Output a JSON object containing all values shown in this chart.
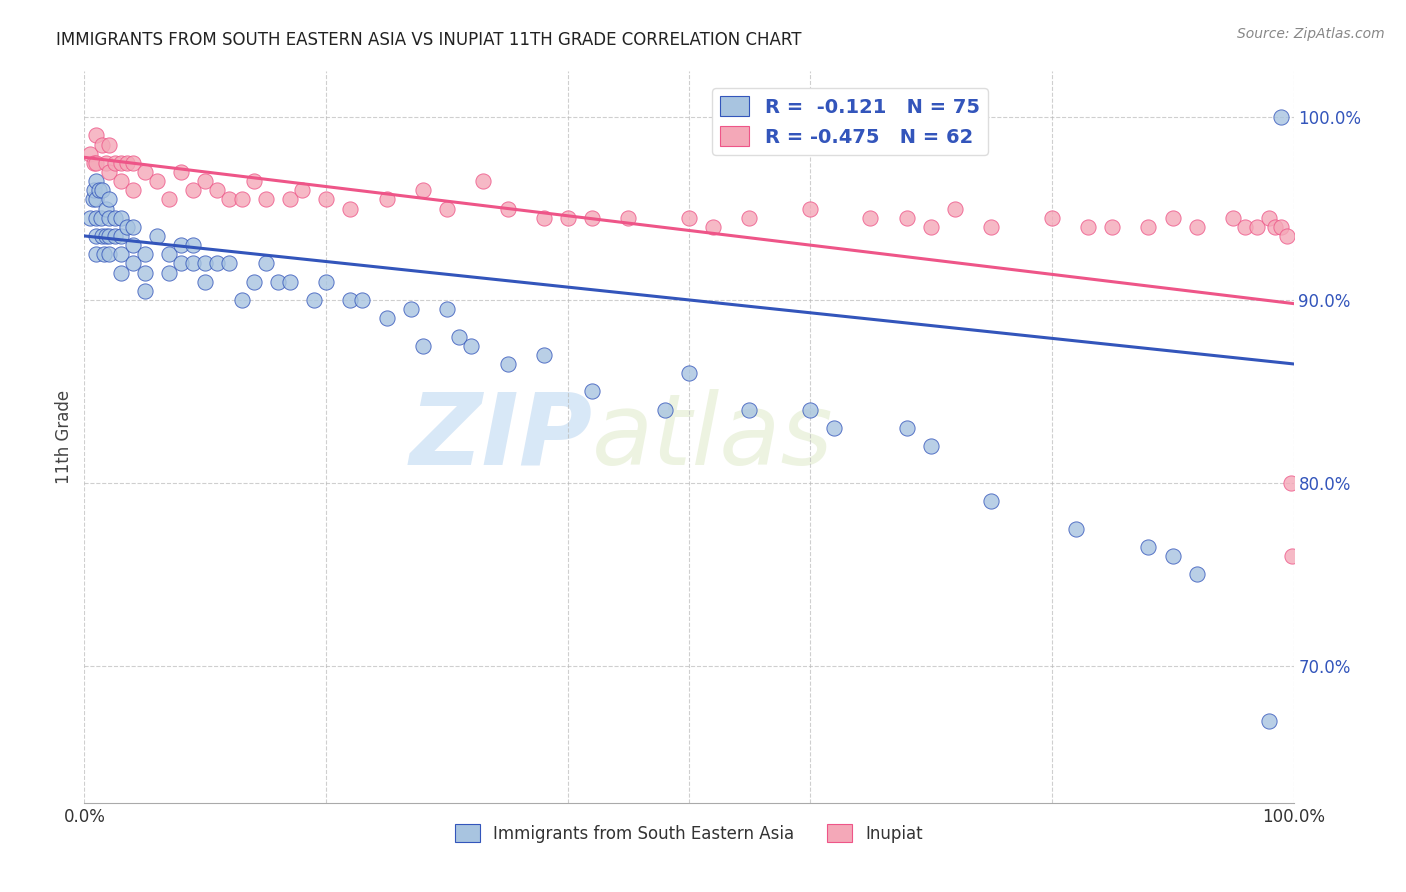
{
  "title": "IMMIGRANTS FROM SOUTH EASTERN ASIA VS INUPIAT 11TH GRADE CORRELATION CHART",
  "source": "Source: ZipAtlas.com",
  "ylabel": "11th Grade",
  "ytick_labels": [
    "70.0%",
    "80.0%",
    "90.0%",
    "100.0%"
  ],
  "ytick_values": [
    0.7,
    0.8,
    0.9,
    1.0
  ],
  "xlim": [
    0.0,
    1.0
  ],
  "ylim": [
    0.625,
    1.025
  ],
  "legend_blue_r": "-0.121",
  "legend_blue_n": "75",
  "legend_pink_r": "-0.475",
  "legend_pink_n": "62",
  "blue_color": "#A8C4E0",
  "pink_color": "#F4A8B8",
  "blue_line_color": "#3355BB",
  "pink_line_color": "#EE5588",
  "watermark_zip": "ZIP",
  "watermark_atlas": "atlas",
  "blue_scatter_x": [
    0.005,
    0.007,
    0.008,
    0.01,
    0.01,
    0.01,
    0.01,
    0.01,
    0.012,
    0.014,
    0.015,
    0.015,
    0.016,
    0.018,
    0.018,
    0.02,
    0.02,
    0.02,
    0.02,
    0.025,
    0.025,
    0.03,
    0.03,
    0.03,
    0.03,
    0.035,
    0.04,
    0.04,
    0.04,
    0.05,
    0.05,
    0.05,
    0.06,
    0.07,
    0.07,
    0.08,
    0.08,
    0.09,
    0.09,
    0.1,
    0.1,
    0.11,
    0.12,
    0.13,
    0.14,
    0.15,
    0.16,
    0.17,
    0.19,
    0.2,
    0.22,
    0.23,
    0.25,
    0.27,
    0.28,
    0.3,
    0.31,
    0.32,
    0.35,
    0.38,
    0.42,
    0.48,
    0.5,
    0.55,
    0.6,
    0.62,
    0.68,
    0.7,
    0.75,
    0.82,
    0.88,
    0.9,
    0.92,
    0.98,
    0.99
  ],
  "blue_scatter_y": [
    0.945,
    0.955,
    0.96,
    0.965,
    0.955,
    0.945,
    0.935,
    0.925,
    0.96,
    0.945,
    0.96,
    0.935,
    0.925,
    0.95,
    0.935,
    0.955,
    0.945,
    0.935,
    0.925,
    0.945,
    0.935,
    0.945,
    0.935,
    0.925,
    0.915,
    0.94,
    0.94,
    0.93,
    0.92,
    0.925,
    0.915,
    0.905,
    0.935,
    0.925,
    0.915,
    0.93,
    0.92,
    0.93,
    0.92,
    0.92,
    0.91,
    0.92,
    0.92,
    0.9,
    0.91,
    0.92,
    0.91,
    0.91,
    0.9,
    0.91,
    0.9,
    0.9,
    0.89,
    0.895,
    0.875,
    0.895,
    0.88,
    0.875,
    0.865,
    0.87,
    0.85,
    0.84,
    0.86,
    0.84,
    0.84,
    0.83,
    0.83,
    0.82,
    0.79,
    0.775,
    0.765,
    0.76,
    0.75,
    0.67,
    1.0
  ],
  "pink_scatter_x": [
    0.005,
    0.008,
    0.01,
    0.01,
    0.015,
    0.018,
    0.02,
    0.02,
    0.025,
    0.03,
    0.03,
    0.035,
    0.04,
    0.04,
    0.05,
    0.06,
    0.07,
    0.08,
    0.09,
    0.1,
    0.11,
    0.12,
    0.13,
    0.14,
    0.15,
    0.17,
    0.18,
    0.2,
    0.22,
    0.25,
    0.28,
    0.3,
    0.33,
    0.35,
    0.38,
    0.4,
    0.42,
    0.45,
    0.5,
    0.52,
    0.55,
    0.6,
    0.65,
    0.68,
    0.7,
    0.72,
    0.75,
    0.8,
    0.83,
    0.85,
    0.88,
    0.9,
    0.92,
    0.95,
    0.96,
    0.97,
    0.98,
    0.985,
    0.99,
    0.995,
    0.998,
    0.999
  ],
  "pink_scatter_y": [
    0.98,
    0.975,
    0.99,
    0.975,
    0.985,
    0.975,
    0.985,
    0.97,
    0.975,
    0.975,
    0.965,
    0.975,
    0.975,
    0.96,
    0.97,
    0.965,
    0.955,
    0.97,
    0.96,
    0.965,
    0.96,
    0.955,
    0.955,
    0.965,
    0.955,
    0.955,
    0.96,
    0.955,
    0.95,
    0.955,
    0.96,
    0.95,
    0.965,
    0.95,
    0.945,
    0.945,
    0.945,
    0.945,
    0.945,
    0.94,
    0.945,
    0.95,
    0.945,
    0.945,
    0.94,
    0.95,
    0.94,
    0.945,
    0.94,
    0.94,
    0.94,
    0.945,
    0.94,
    0.945,
    0.94,
    0.94,
    0.945,
    0.94,
    0.94,
    0.935,
    0.8,
    0.76
  ],
  "blue_line_x": [
    0.0,
    1.0
  ],
  "blue_line_y_start": 0.935,
  "blue_line_y_end": 0.865,
  "pink_line_x": [
    0.0,
    1.0
  ],
  "pink_line_y_start": 0.978,
  "pink_line_y_end": 0.898
}
